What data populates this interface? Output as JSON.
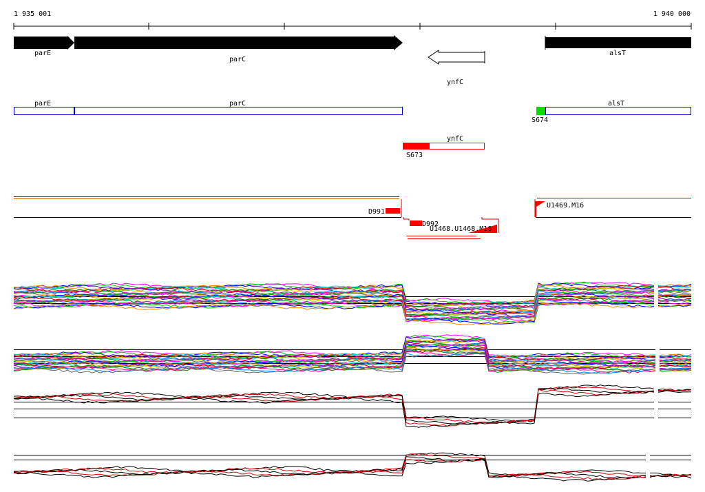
{
  "ruler": {
    "start_label": "1 935 001",
    "end_label": "1 940 000"
  },
  "genes": [
    {
      "id": "parE",
      "label": "parE"
    },
    {
      "id": "parC",
      "label": "parC"
    },
    {
      "id": "ynfC",
      "label": "ynfC"
    },
    {
      "id": "alsT",
      "label": "alsT"
    }
  ],
  "features": [
    {
      "id": "S673",
      "label": "S673"
    },
    {
      "id": "S674",
      "label": "S674"
    },
    {
      "id": "D991",
      "label": "D991"
    },
    {
      "id": "D992",
      "label": "D992"
    },
    {
      "id": "U1469",
      "label": "U1469.M16"
    },
    {
      "id": "overlap",
      "label": "U1468.U1468.M16"
    }
  ],
  "colors": {
    "gene_fill": "#000000",
    "gene_outline": "#0000cc",
    "segment_red": "#ff0000",
    "segment_green": "#00dd00",
    "profile_red": "#dd0000"
  }
}
